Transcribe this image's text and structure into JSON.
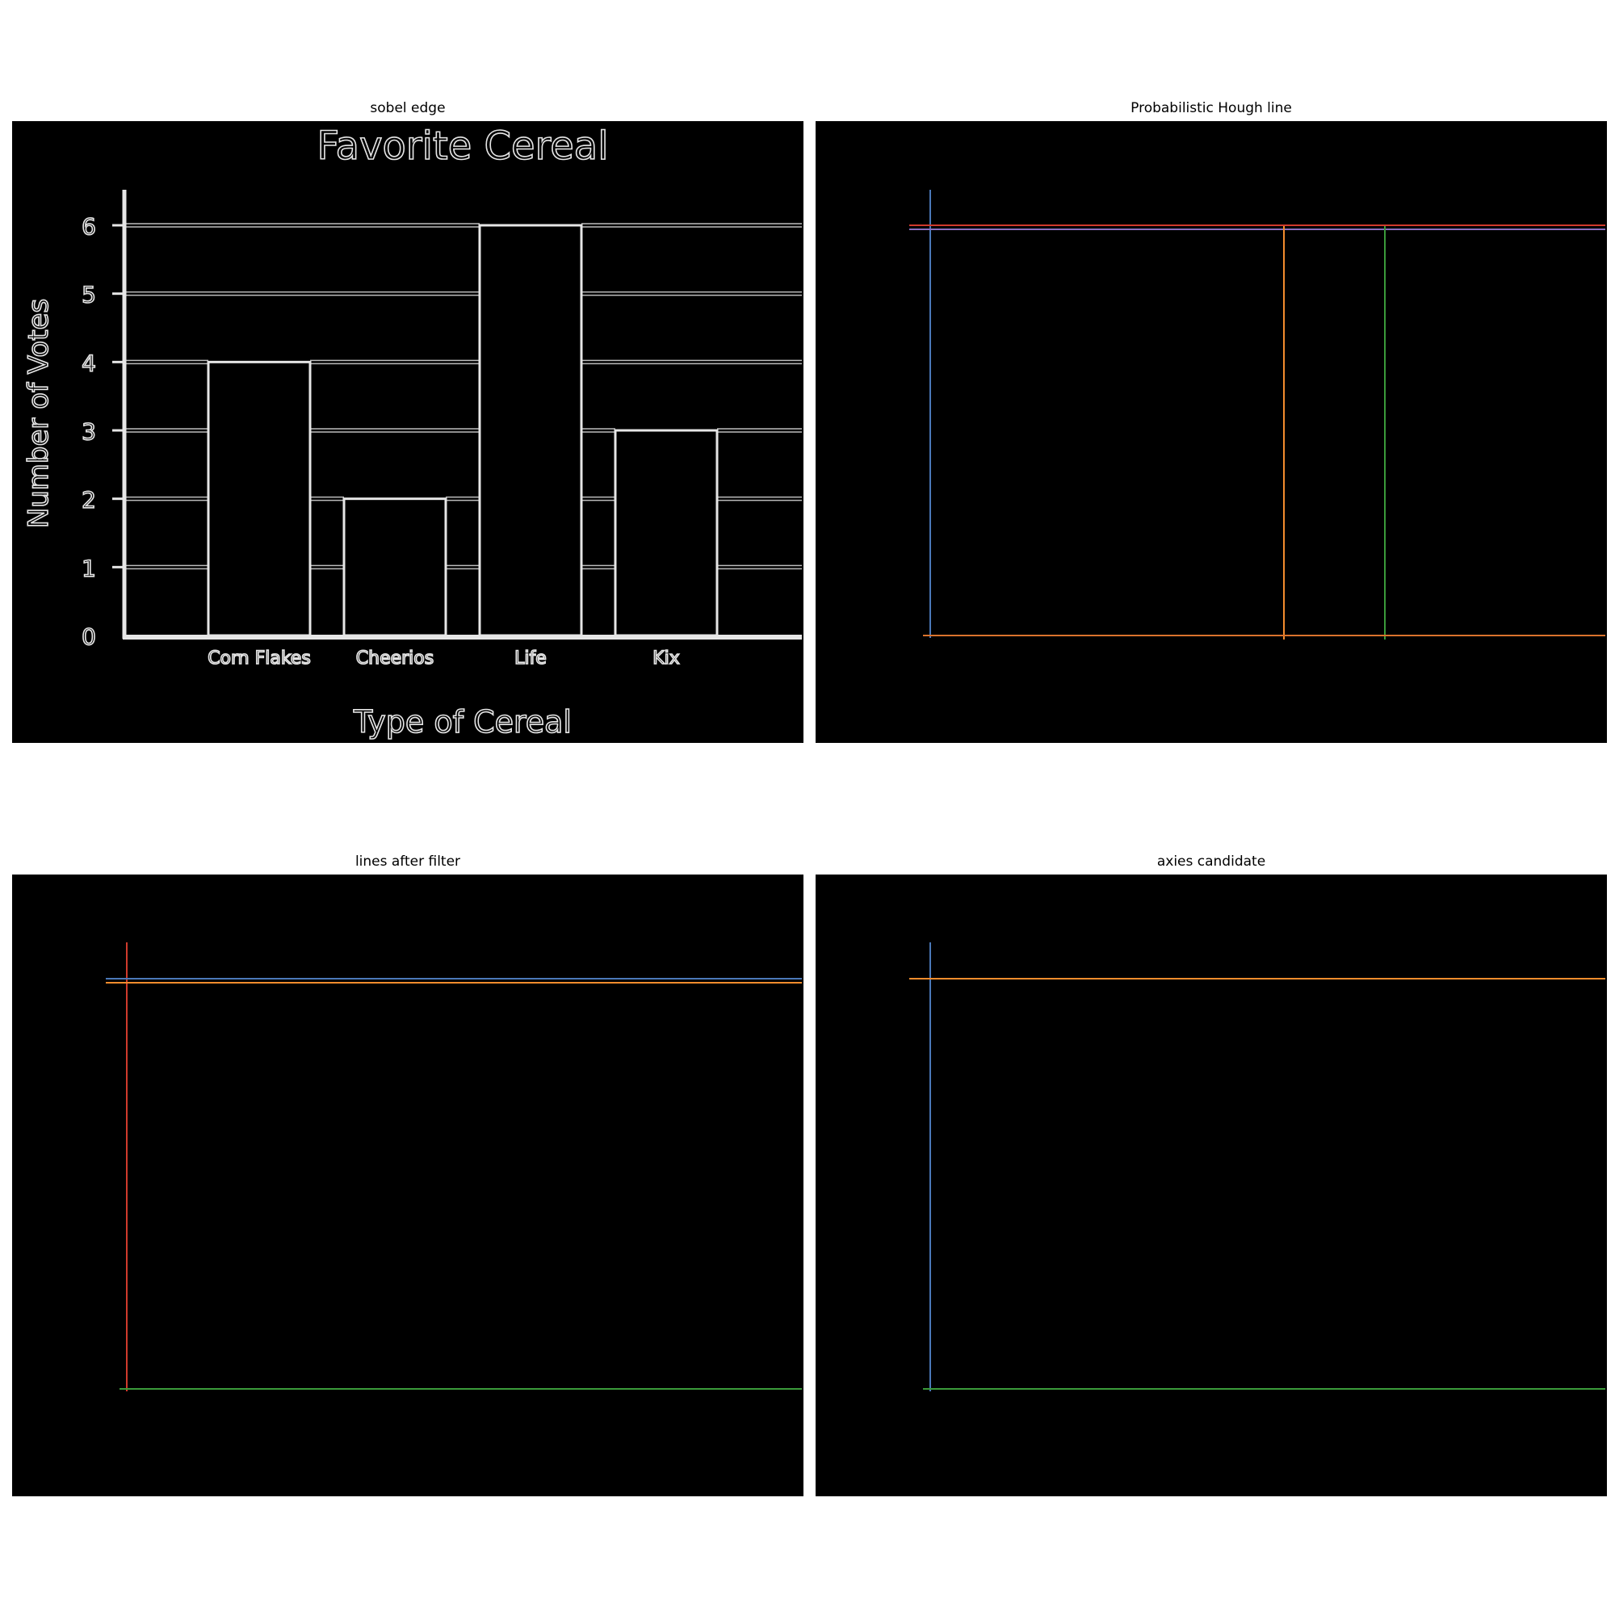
{
  "panels": [
    {
      "title": "sobel edge"
    },
    {
      "title": "Probabilistic Hough line"
    },
    {
      "title": "lines after filter"
    },
    {
      "title": "axies candidate"
    }
  ],
  "chart_data": {
    "type": "bar",
    "title": "Favorite Cereal",
    "xlabel": "Type of Cereal",
    "ylabel": "Number of Votes",
    "categories": [
      "Corn Flakes",
      "Cheerios",
      "Life",
      "Kix"
    ],
    "values": [
      4,
      2,
      6,
      3
    ],
    "yticks": [
      "0",
      "1",
      "2",
      "3",
      "4",
      "5",
      "6"
    ],
    "ylim": [
      0,
      6
    ],
    "grid": true,
    "colors": {
      "background": "#000000",
      "edge": "#e6e6e6",
      "blue": "#4a78b8",
      "orange": "#f28c2d",
      "green": "#3a9a3a",
      "red": "#d03a2c",
      "purple": "#8a6fc0"
    }
  }
}
